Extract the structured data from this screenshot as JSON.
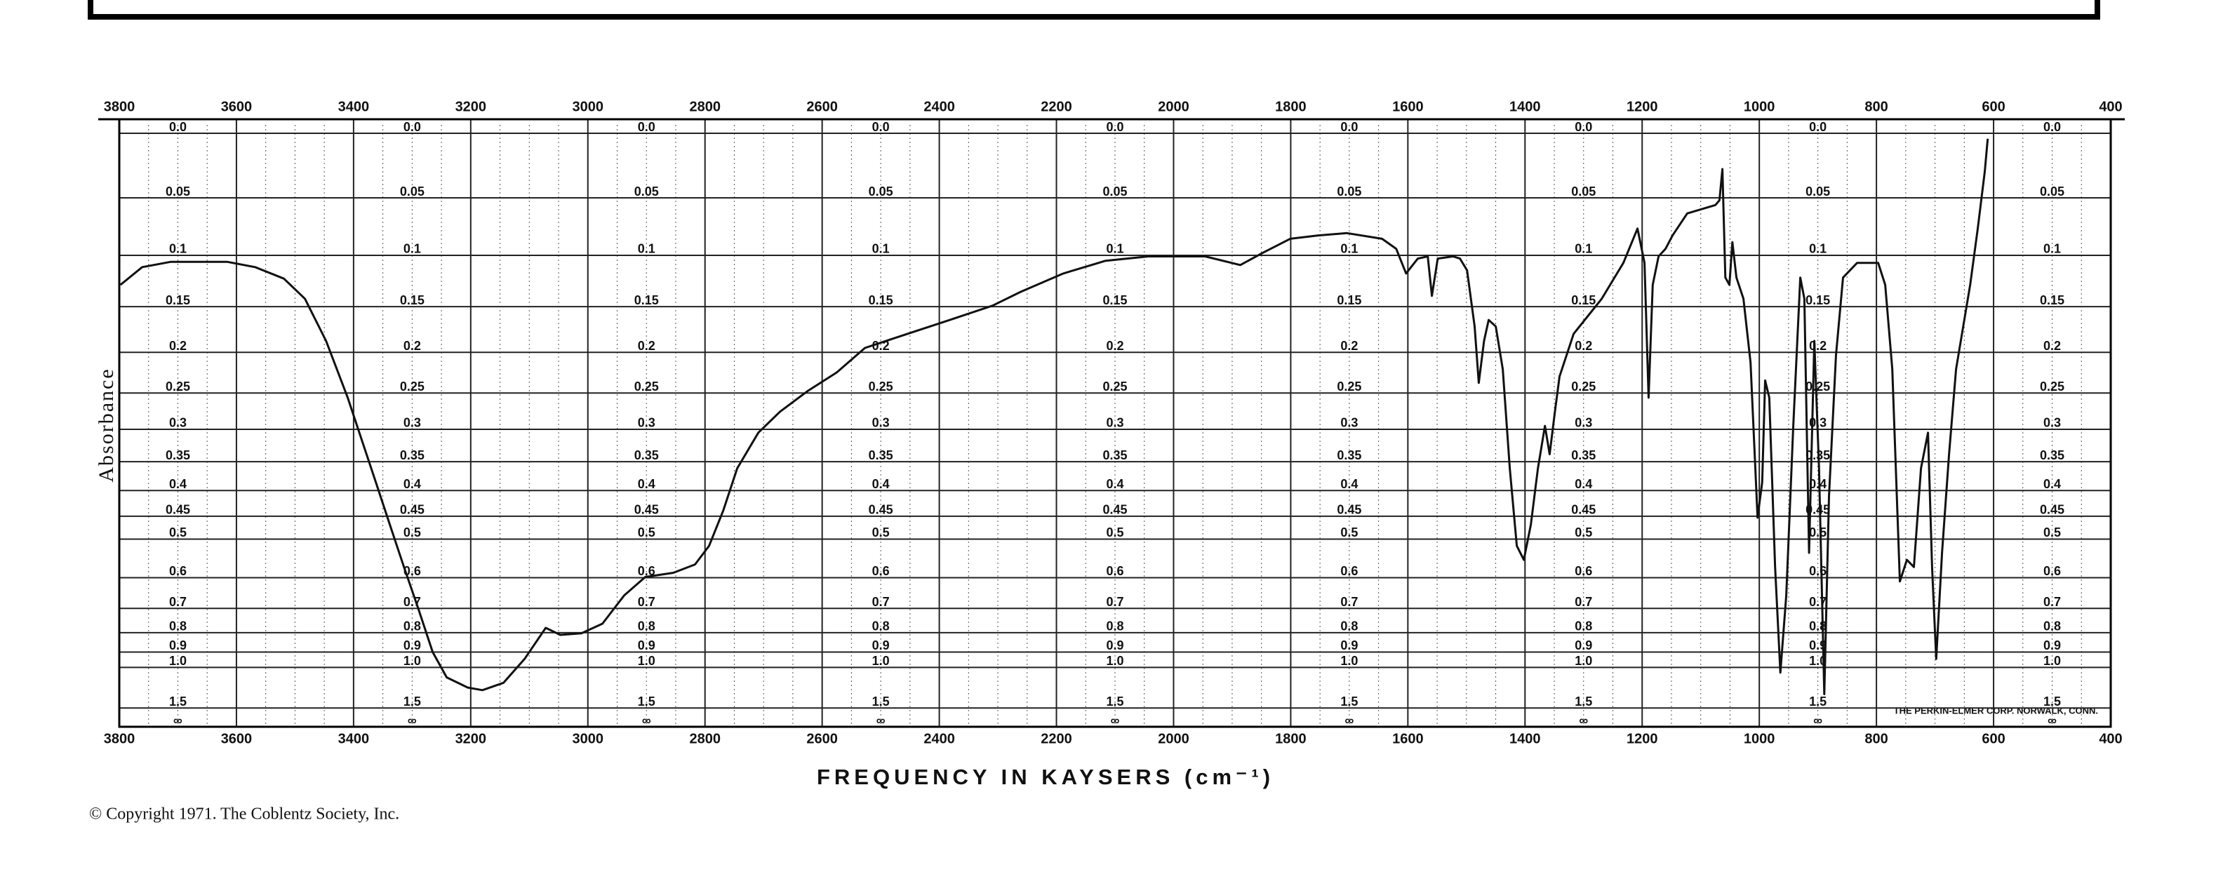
{
  "chart_data": {
    "type": "line",
    "x_label": "FREQUENCY IN KAYSERS (cm⁻¹)",
    "y_label": "Absorbance",
    "copyright": "© Copyright 1971.  The Coblentz Society, Inc.",
    "maker": "THE PERKIN-ELMER CORP. NORWALK, CONN.",
    "color": "#111111",
    "grid": true,
    "yscale": "absorbance",
    "xlim": [
      3800,
      400
    ],
    "xticks": [
      3800,
      3600,
      3400,
      3200,
      3000,
      2800,
      2600,
      2400,
      2200,
      2000,
      1800,
      1600,
      1400,
      1200,
      1000,
      800,
      600,
      400
    ],
    "ylim": [
      0,
      null
    ],
    "yticks": [
      {
        "value": 0,
        "label": "0.0"
      },
      0.05,
      0.1,
      0.15,
      0.2,
      0.25,
      0.3,
      0.35,
      0.4,
      0.45,
      0.5,
      0.6,
      0.7,
      0.8,
      0.9,
      {
        "value": 1,
        "label": "1.0"
      },
      1.5,
      {
        "value": null,
        "label": "∞"
      }
    ],
    "x": [
      3798,
      3761,
      3712,
      3616,
      3568,
      3519,
      3483,
      3447,
      3410,
      3386,
      3362,
      3338,
      3314,
      3289,
      3265,
      3241,
      3205,
      3180,
      3144,
      3108,
      3072,
      3047,
      3011,
      2975,
      2938,
      2902,
      2854,
      2817,
      2793,
      2769,
      2745,
      2709,
      2672,
      2624,
      2575,
      2527,
      2454,
      2382,
      2309,
      2261,
      2188,
      2116,
      2043,
      1946,
      1886,
      1849,
      1801,
      1753,
      1704,
      1644,
      1620,
      1603,
      1583,
      1566,
      1559,
      1549,
      1523,
      1511,
      1499,
      1486,
      1479,
      1470,
      1462,
      1450,
      1438,
      1426,
      1414,
      1402,
      1390,
      1378,
      1366,
      1358,
      1349,
      1341,
      1317,
      1269,
      1232,
      1208,
      1196,
      1189,
      1182,
      1172,
      1160,
      1148,
      1123,
      1075,
      1068,
      1063,
      1058,
      1051,
      1046,
      1039,
      1027,
      1015,
      1003,
      995,
      990,
      983,
      973,
      964,
      954,
      942,
      930,
      923,
      915,
      906,
      898,
      889,
      881,
      869,
      857,
      833,
      797,
      785,
      773,
      760,
      748,
      736,
      724,
      712,
      705,
      698,
      688,
      676,
      664,
      640,
      627,
      615,
      610
    ],
    "values": [
      0.128,
      0.111,
      0.106,
      0.106,
      0.111,
      0.122,
      0.142,
      0.187,
      0.256,
      0.316,
      0.385,
      0.468,
      0.57,
      0.704,
      0.9,
      1.08,
      1.18,
      1.21,
      1.13,
      0.942,
      0.778,
      0.81,
      0.803,
      0.76,
      0.655,
      0.598,
      0.586,
      0.563,
      0.516,
      0.439,
      0.361,
      0.305,
      0.275,
      0.247,
      0.224,
      0.195,
      0.179,
      0.164,
      0.149,
      0.135,
      0.117,
      0.105,
      0.101,
      0.101,
      0.109,
      0.098,
      0.085,
      0.082,
      0.08,
      0.085,
      0.094,
      0.117,
      0.103,
      0.101,
      0.139,
      0.103,
      0.101,
      0.103,
      0.114,
      0.171,
      0.237,
      0.187,
      0.164,
      0.171,
      0.22,
      0.361,
      0.516,
      0.551,
      0.468,
      0.361,
      0.295,
      0.338,
      0.275,
      0.229,
      0.179,
      0.142,
      0.107,
      0.076,
      0.107,
      0.256,
      0.128,
      0.101,
      0.094,
      0.082,
      0.063,
      0.056,
      0.052,
      0.027,
      0.121,
      0.128,
      0.088,
      0.121,
      0.142,
      0.212,
      0.453,
      0.385,
      0.234,
      0.256,
      0.57,
      1.04,
      0.655,
      0.295,
      0.121,
      0.142,
      0.533,
      0.187,
      0.361,
      1.26,
      0.411,
      0.203,
      0.121,
      0.107,
      0.107,
      0.128,
      0.22,
      0.611,
      0.551,
      0.57,
      0.361,
      0.305,
      0.57,
      0.942,
      0.533,
      0.338,
      0.22,
      0.128,
      0.076,
      0.029,
      0.004
    ]
  }
}
